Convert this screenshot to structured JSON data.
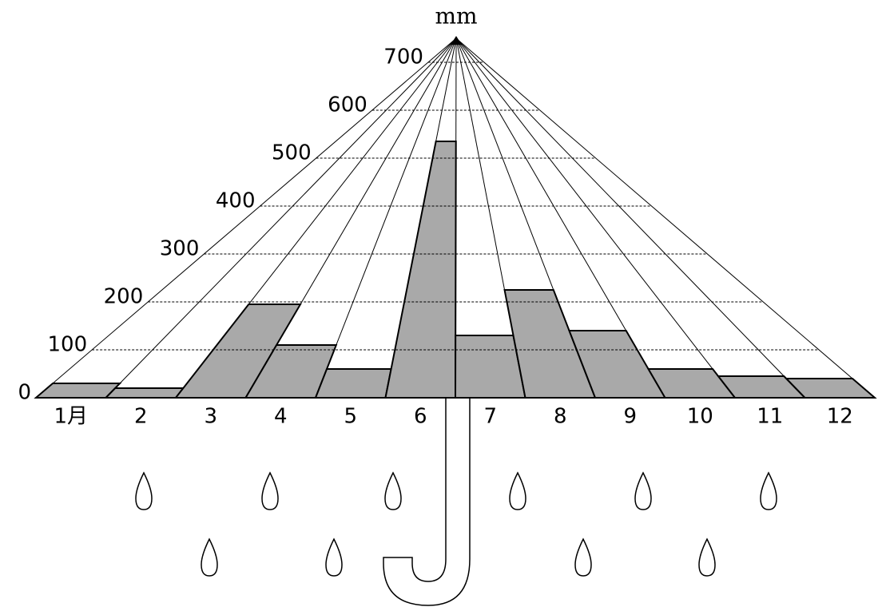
{
  "chart_data": {
    "type": "umbrella-bar",
    "y_label": "mm",
    "categories": [
      "1月",
      "2",
      "3",
      "4",
      "5",
      "6",
      "7",
      "8",
      "9",
      "10",
      "11",
      "12"
    ],
    "values": [
      30,
      20,
      195,
      110,
      60,
      535,
      130,
      225,
      140,
      60,
      45,
      40
    ],
    "color": "#a9a9a9",
    "ylim": [
      0,
      750
    ],
    "yticks": [
      0,
      100,
      200,
      300,
      400,
      500,
      600,
      700
    ],
    "grid": true
  }
}
